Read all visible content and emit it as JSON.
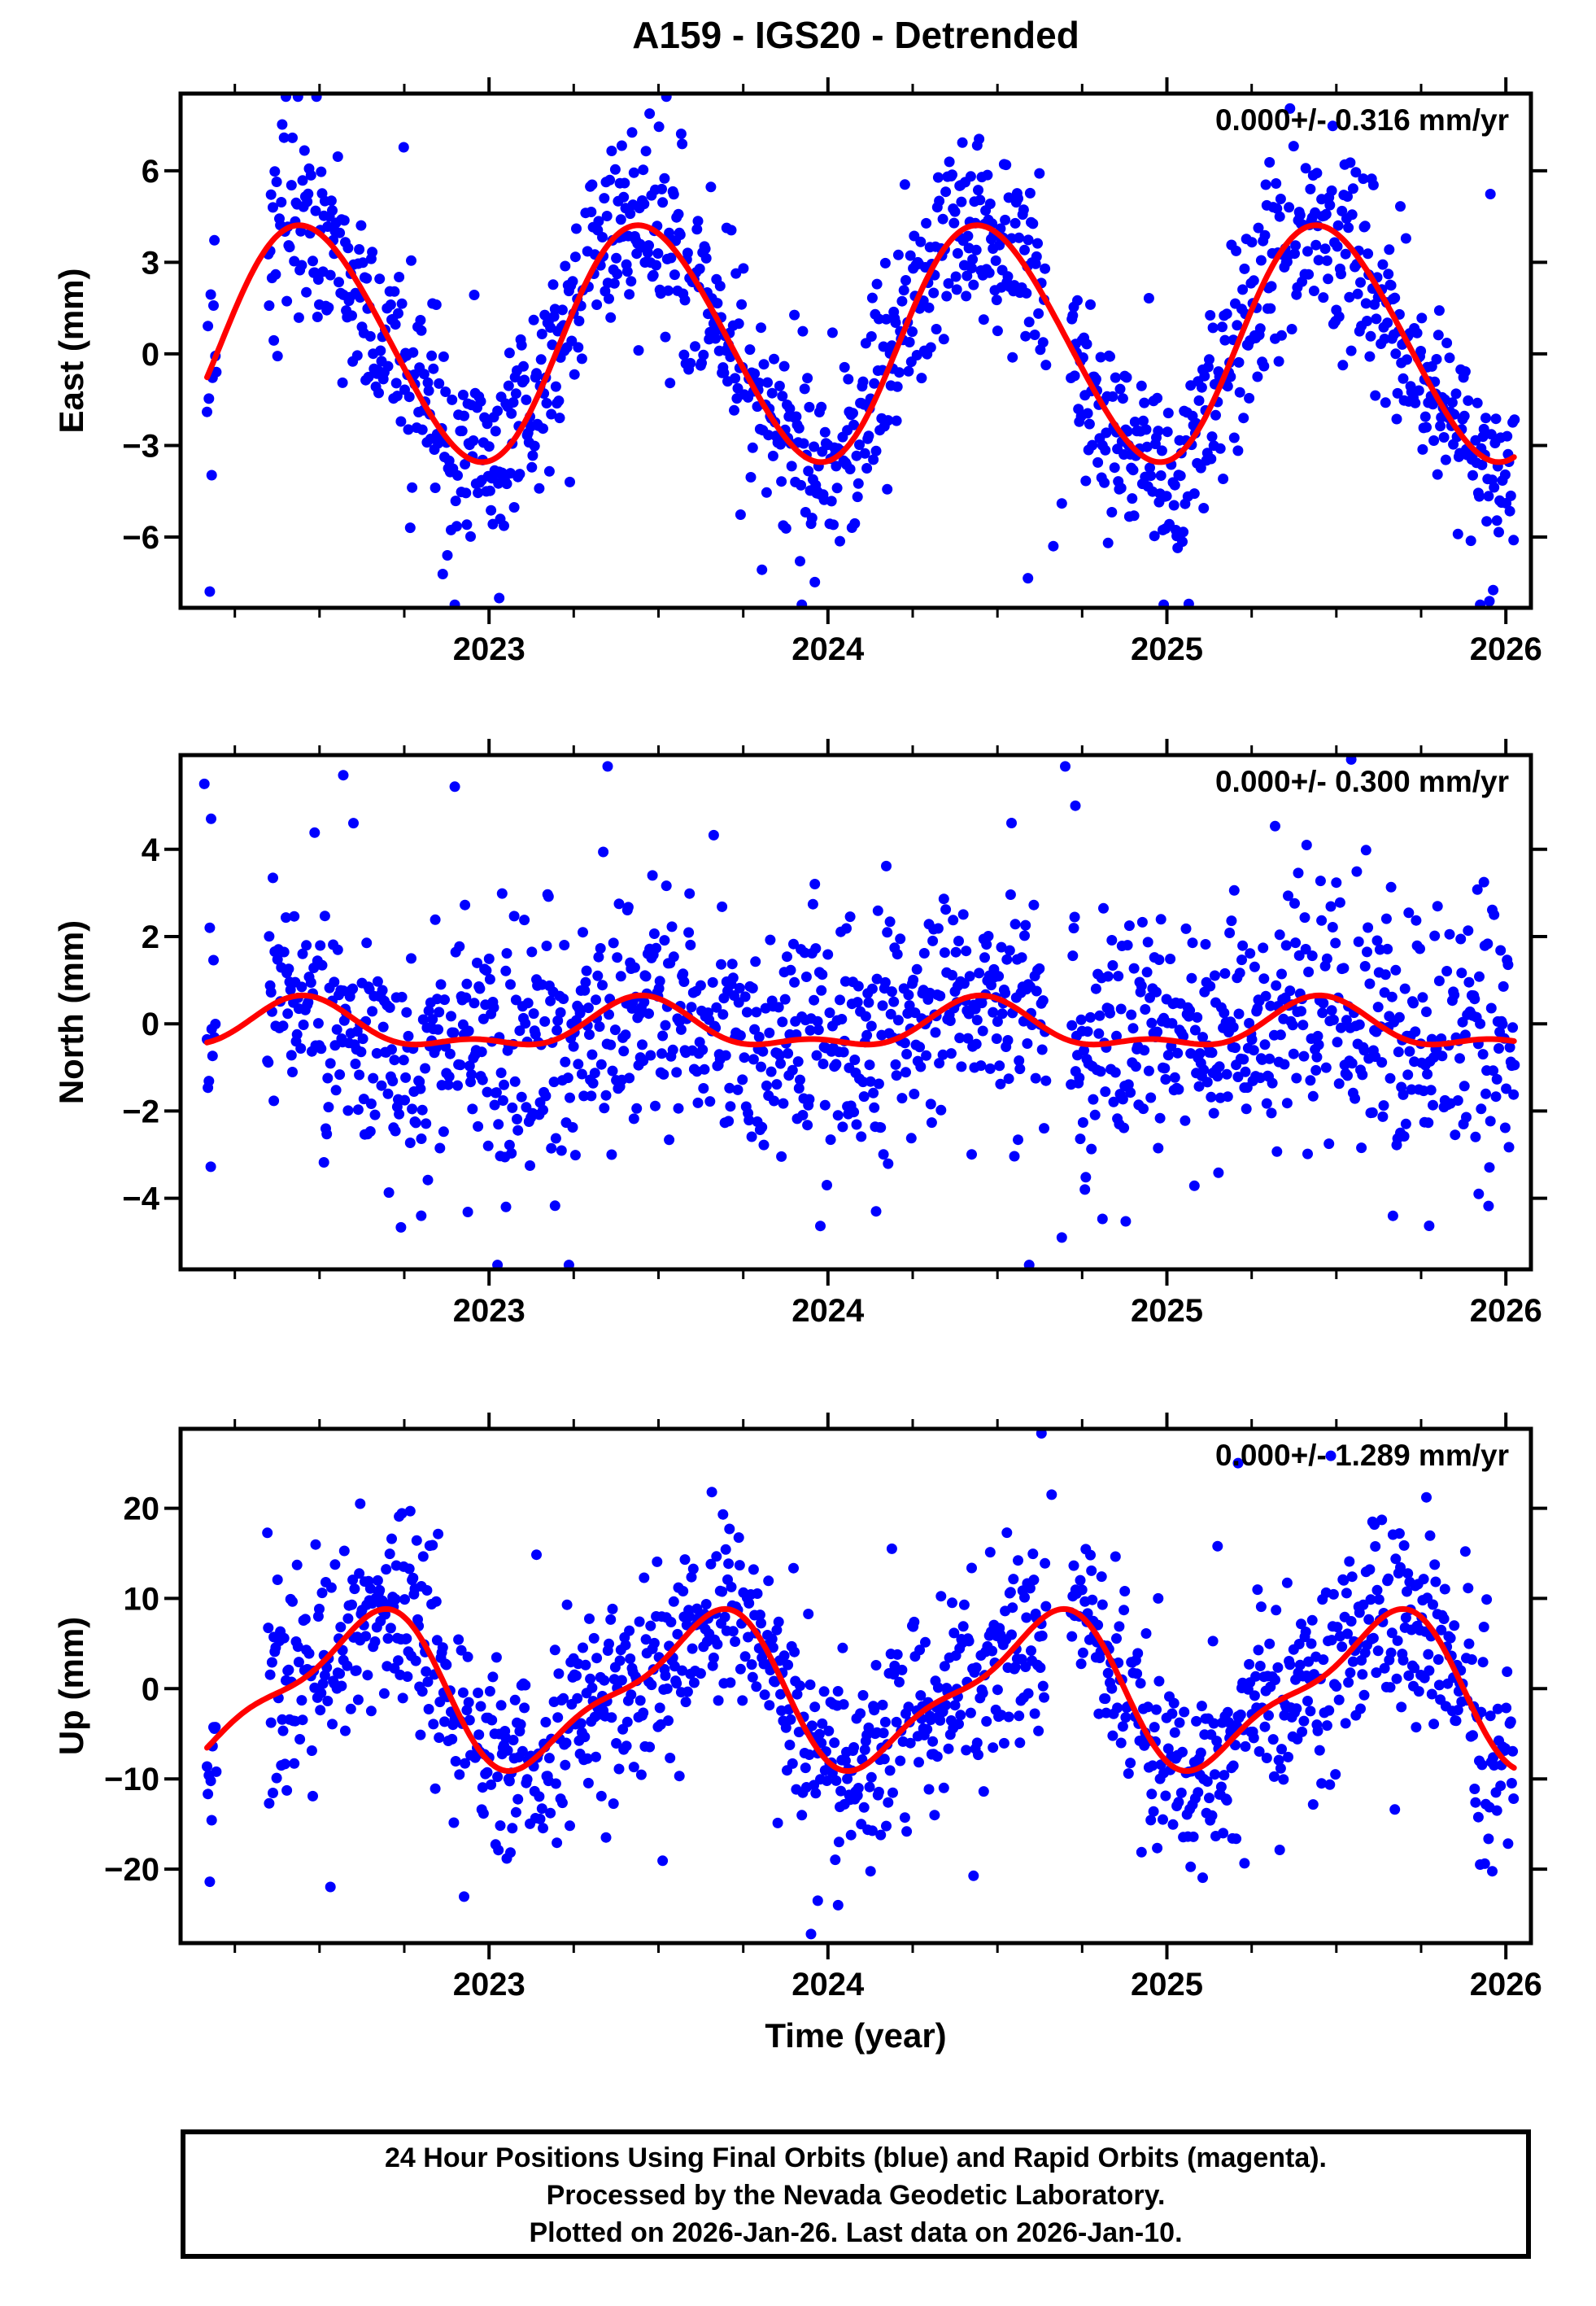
{
  "title": "A159 - IGS20 - Detrended",
  "chart_data": {
    "type": "scatter",
    "x_axis": {
      "label": "Time (year)",
      "range": [
        2022.09,
        2026.074
      ],
      "ticks": [
        2023,
        2024,
        2025,
        2026
      ],
      "minor_step": 0.25
    },
    "data_span": {
      "start": 2022.168,
      "end": 2026.027,
      "cadence_days": 1
    },
    "panels": [
      {
        "id": "east",
        "ylabel": "East (mm)",
        "annotation": "0.000+/- 0.316 mm/yr",
        "yticks": [
          -6,
          -3,
          0,
          3,
          6
        ],
        "yrange": [
          -8.32,
          8.53
        ],
        "fit_model": {
          "mean": 0.35,
          "annual_amp": 3.85,
          "annual_phase": 0.46,
          "semi_amp": 0.25,
          "semi_phase": 0.33
        },
        "scatter": {
          "sigma": 1.6,
          "heavy_frac": 0.05,
          "heavy_scale": 2.2,
          "skew_amp": 0,
          "dropout": 0.07,
          "seed": 101
        },
        "gaps": [
          [
            2022.196,
            2022.345
          ],
          [
            2024.645,
            2024.715
          ]
        ],
        "outliers": [
          [
            2023.03,
            -8.0
          ],
          [
            2024.59,
            -7.35
          ],
          [
            2024.665,
            -6.3
          ],
          [
            2024.69,
            -4.9
          ]
        ]
      },
      {
        "id": "north",
        "ylabel": "North (mm)",
        "annotation": "0.000+/- 0.300 mm/yr",
        "yticks": [
          -4,
          -2,
          0,
          2,
          4
        ],
        "yrange": [
          -5.63,
          6.16
        ],
        "fit_model": {
          "mean": -0.1,
          "annual_amp": 0.5,
          "annual_phase": 0.45,
          "semi_amp": 0.25,
          "semi_phase": 0.45
        },
        "scatter": {
          "sigma": 1.35,
          "heavy_frac": 0.06,
          "heavy_scale": 2.0,
          "skew_amp": 0,
          "dropout": 0.07,
          "seed": 202
        },
        "gaps": [
          [
            2022.196,
            2022.345
          ],
          [
            2024.645,
            2024.715
          ]
        ],
        "outliers": [
          [
            2022.16,
            5.5
          ],
          [
            2022.18,
            4.7
          ],
          [
            2022.57,
            5.7
          ],
          [
            2022.6,
            4.6
          ],
          [
            2023.35,
            5.9
          ],
          [
            2024.7,
            5.9
          ],
          [
            2024.73,
            5.0
          ],
          [
            2022.8,
            -4.4
          ],
          [
            2024.69,
            -4.9
          ],
          [
            2023.05,
            -4.2
          ],
          [
            2025.92,
            -3.9
          ]
        ]
      },
      {
        "id": "up",
        "ylabel": "Up (mm)",
        "annotation": "0.000+/- 1.289 mm/yr",
        "yticks": [
          -20,
          -10,
          0,
          10,
          20
        ],
        "yrange": [
          -28.2,
          28.8
        ],
        "fit_model": {
          "mean": -0.25,
          "annual_amp": 7.8,
          "annual_phase": 0.63,
          "semi_amp": 2.5,
          "semi_phase": 0.25
        },
        "scatter": {
          "sigma": 5.5,
          "heavy_frac": 0.06,
          "heavy_scale": 1.8,
          "skew_amp": 4,
          "dropout": 0.07,
          "seed": 303
        },
        "gaps": [
          [
            2022.196,
            2022.345
          ],
          [
            2024.645,
            2024.715
          ]
        ],
        "outliers": [
          [
            2024.63,
            28.3
          ],
          [
            2023.95,
            -27.2
          ],
          [
            2023.97,
            -23.5
          ],
          [
            2024.03,
            -24.0
          ],
          [
            2025.21,
            25.0
          ],
          [
            2022.62,
            20.5
          ],
          [
            2024.66,
            21.5
          ]
        ]
      }
    ],
    "legend": {
      "final_orbits_color_name": "blue",
      "rapid_orbits_color_name": "magenta",
      "fit_line_color_name": "red"
    }
  },
  "colors": {
    "final_orbits": "#0000ff",
    "rapid_orbits": "#ff00ff",
    "fit_line": "#ff0000",
    "frame": "#000000",
    "text": "#000000",
    "background": "#ffffff"
  },
  "marker": {
    "radius": 6.5
  },
  "fit_line": {
    "width": 7
  },
  "footer": {
    "lines": [
      "24 Hour Positions Using Final Orbits (blue) and Rapid Orbits (magenta).",
      "Processed by the Nevada Geodetic Laboratory.",
      "Plotted on 2026-Jan-26. Last data on 2026-Jan-10."
    ]
  }
}
